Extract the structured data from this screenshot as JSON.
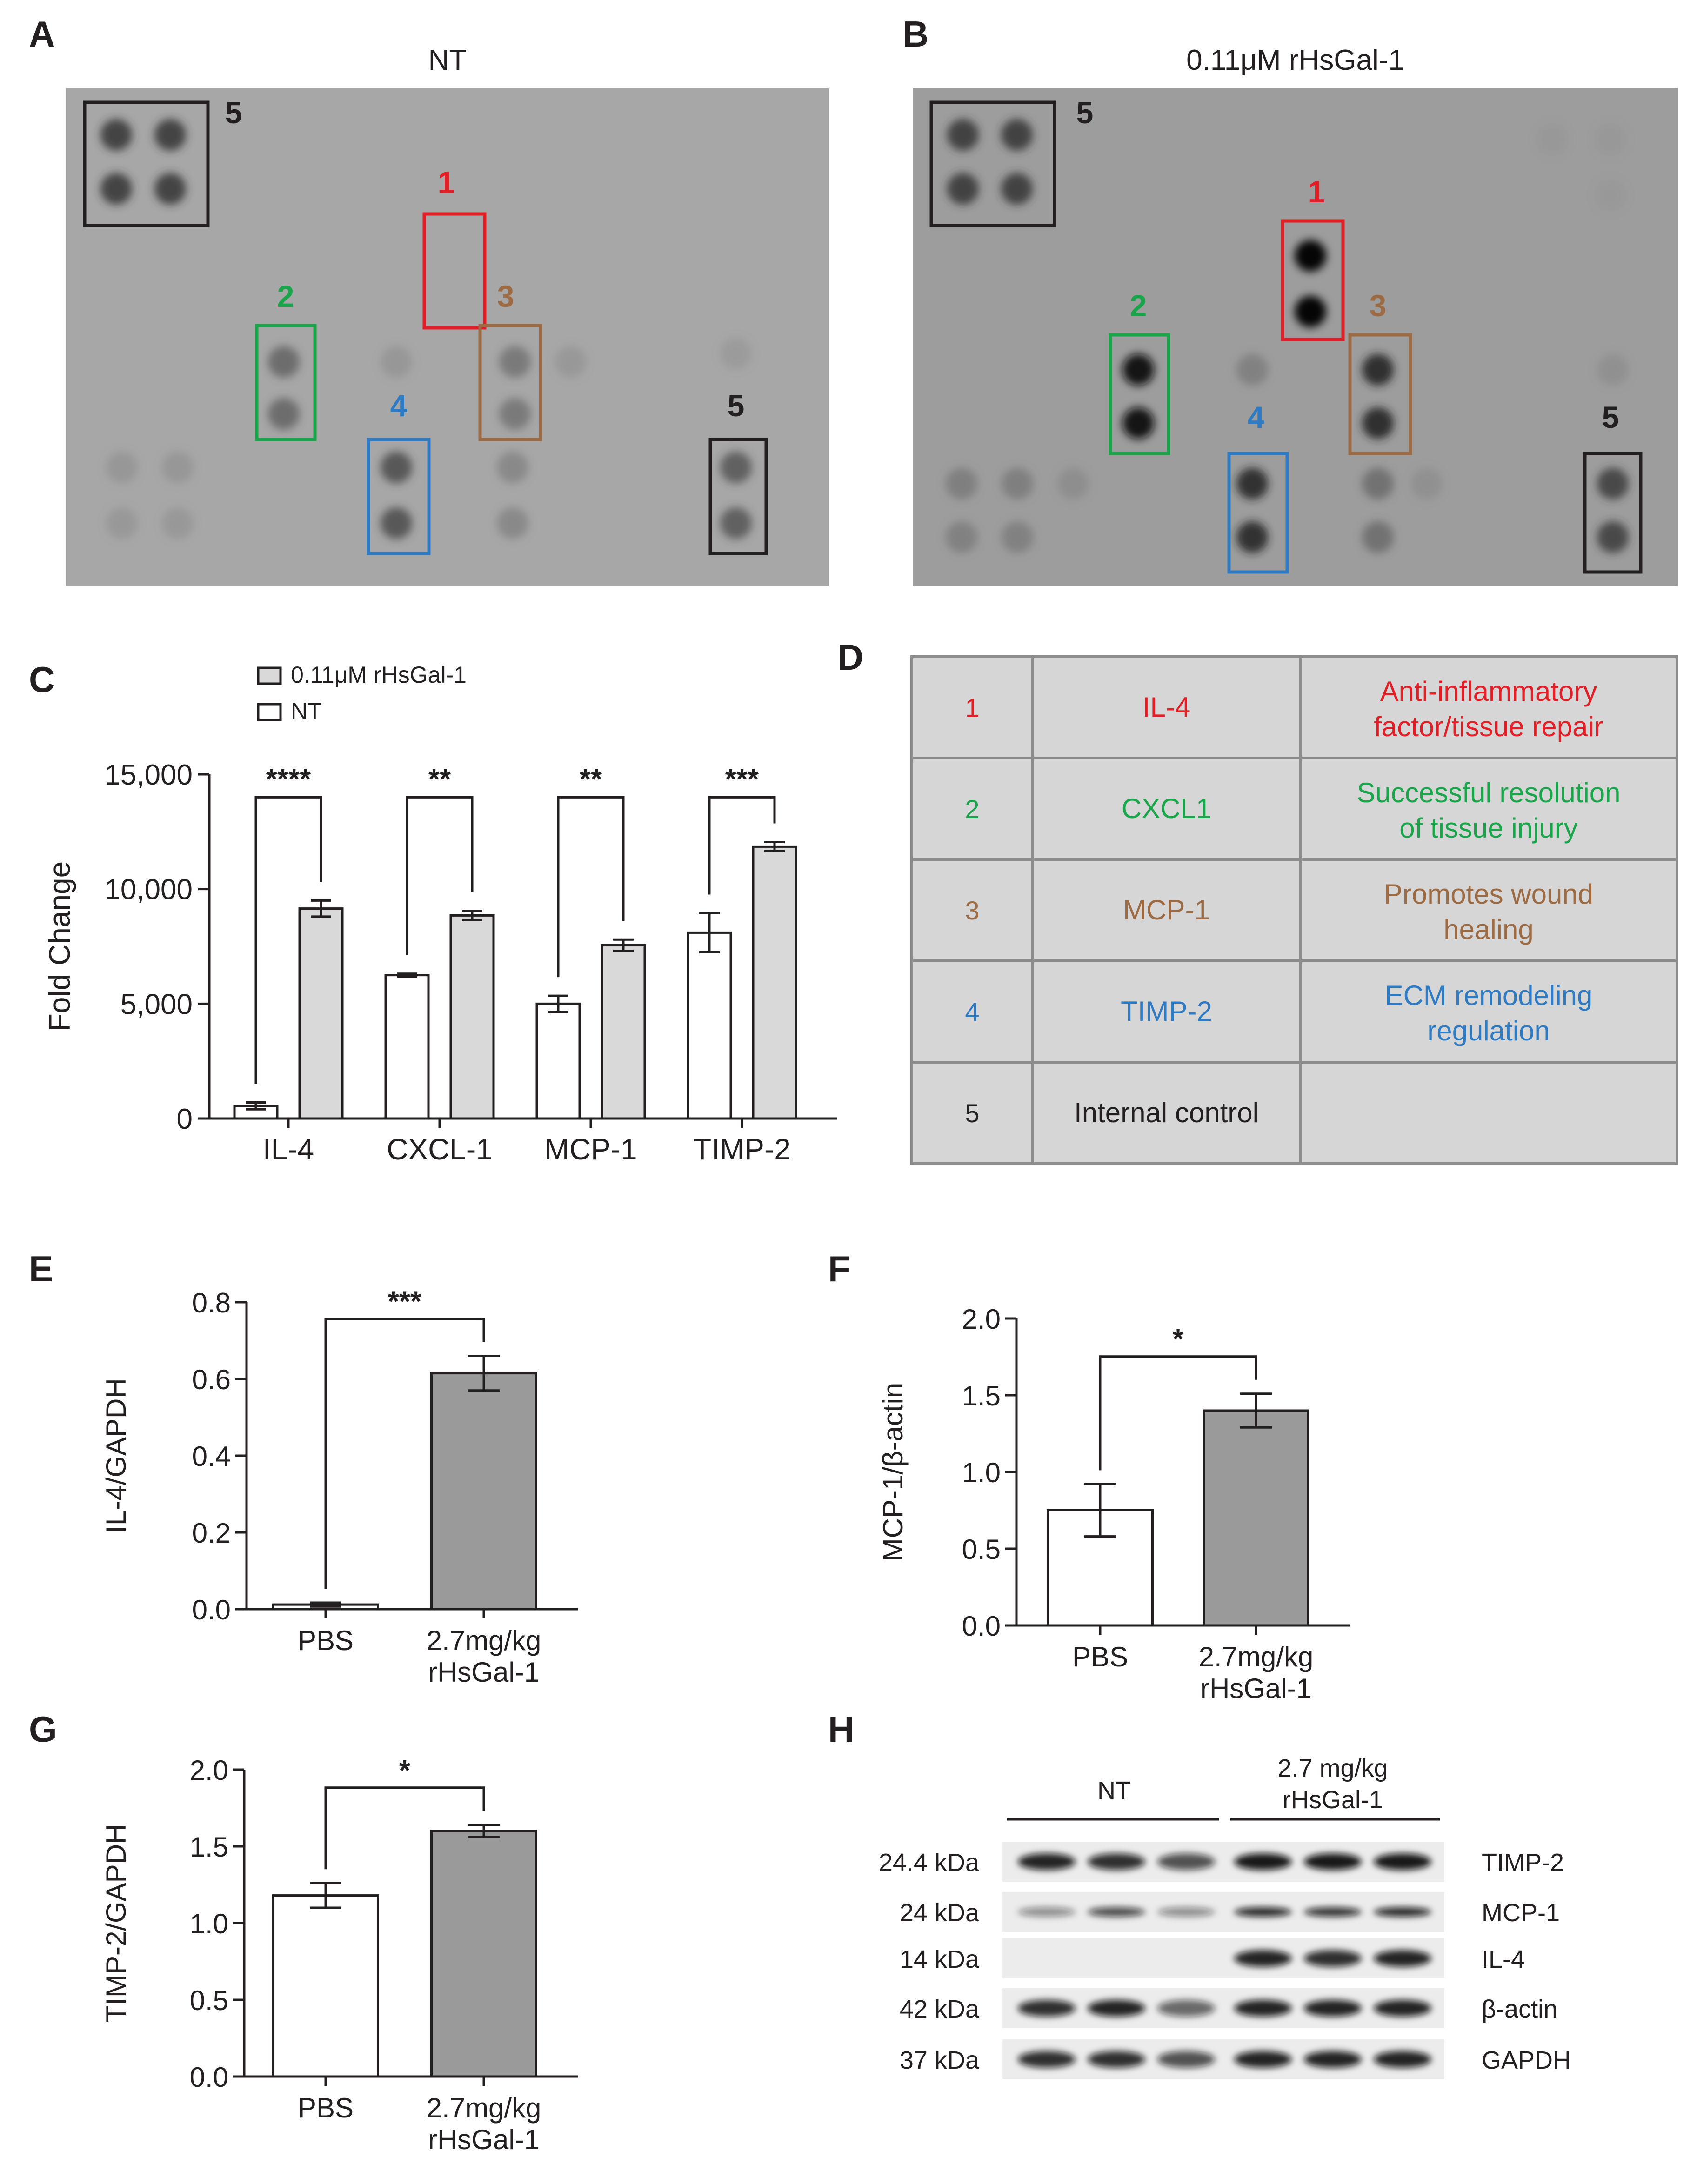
{
  "colors": {
    "red": "#e11f26",
    "green": "#1aa54b",
    "brown": "#9c6b43",
    "blue": "#2f7bc3",
    "black": "#231f20",
    "gray_bar": "#d9d9d9",
    "dark_bar": "#9a9a9a",
    "membrane_nt": "#a7a7a7",
    "membrane_trt": "#9d9d9d",
    "table_bg": "#d6d6d6"
  },
  "panels": {
    "A": {
      "letter": "A",
      "title": "NT",
      "boxes": [
        {
          "label": "5",
          "color": "black"
        },
        {
          "label": "1",
          "color": "red"
        },
        {
          "label": "2",
          "color": "green"
        },
        {
          "label": "3",
          "color": "brown"
        },
        {
          "label": "4",
          "color": "blue"
        },
        {
          "label": "5",
          "color": "black"
        }
      ]
    },
    "B": {
      "letter": "B",
      "title": "0.11μM rHsGal-1",
      "boxes": [
        {
          "label": "5",
          "color": "black"
        },
        {
          "label": "1",
          "color": "red"
        },
        {
          "label": "2",
          "color": "green"
        },
        {
          "label": "3",
          "color": "brown"
        },
        {
          "label": "4",
          "color": "blue"
        },
        {
          "label": "5",
          "color": "black"
        }
      ]
    },
    "C": {
      "letter": "C"
    },
    "D": {
      "letter": "D",
      "rows": [
        {
          "num": "1",
          "name": "IL-4",
          "role_line1": "Anti-inflammatory",
          "role_line2": "factor/tissue repair",
          "color": "#e11f26"
        },
        {
          "num": "2",
          "name": "CXCL1",
          "role_line1": "Successful resolution",
          "role_line2": "of tissue injury",
          "color": "#1aa54b"
        },
        {
          "num": "3",
          "name": "MCP-1",
          "role_line1": "Promotes wound",
          "role_line2": "healing",
          "color": "#9c6b43"
        },
        {
          "num": "4",
          "name": "TIMP-2",
          "role_line1": "ECM remodeling",
          "role_line2": "regulation",
          "color": "#2f7bc3"
        },
        {
          "num": "5",
          "name": "Internal control",
          "role_line1": "",
          "role_line2": "",
          "color": "#231f20"
        }
      ]
    },
    "E": {
      "letter": "E"
    },
    "F": {
      "letter": "F"
    },
    "G": {
      "letter": "G"
    },
    "H": {
      "letter": "H",
      "group_nt": "NT",
      "group_trt_line1": "2.7 mg/kg",
      "group_trt_line2": "rHsGal-1",
      "bands": [
        {
          "kda": "24.4 kDa",
          "protein": "TIMP-2"
        },
        {
          "kda": "24 kDa",
          "protein": "MCP-1"
        },
        {
          "kda": "14 kDa",
          "protein": "IL-4"
        },
        {
          "kda": "42 kDa",
          "protein": "β-actin"
        },
        {
          "kda": "37 kDa",
          "protein": "GAPDH"
        }
      ]
    }
  },
  "chart_data": [
    {
      "panel": "C",
      "type": "bar",
      "categories": [
        "IL-4",
        "CXCL-1",
        "MCP-1",
        "TIMP-2"
      ],
      "series": [
        {
          "name": "NT",
          "values": [
            550,
            6250,
            5000,
            8100
          ],
          "errors": [
            150,
            60,
            350,
            850
          ],
          "fill": "#ffffff"
        },
        {
          "name": "0.11μM rHsGal-1",
          "values": [
            9150,
            8850,
            7550,
            11850
          ],
          "errors": [
            350,
            200,
            250,
            200
          ],
          "fill": "#d9d9d9"
        }
      ],
      "significance": [
        "****",
        "**",
        "**",
        "***"
      ],
      "ylabel": "Fold Change",
      "ylim": [
        0,
        15000
      ],
      "yticks": [
        0,
        5000,
        10000,
        15000
      ],
      "ytick_labels": [
        "0",
        "5,000",
        "10,000",
        "15,000"
      ],
      "legend": [
        "0.11μM rHsGal-1",
        "NT"
      ]
    },
    {
      "panel": "E",
      "type": "bar",
      "categories": [
        "PBS",
        "2.7mg/kg rHsGal-1"
      ],
      "category_lines": [
        [
          "PBS"
        ],
        [
          "2.7mg/kg",
          "rHsGal-1"
        ]
      ],
      "values": [
        0.012,
        0.615
      ],
      "errors": [
        0.005,
        0.045
      ],
      "significance": "***",
      "ylabel": "IL-4/GAPDH",
      "ylim": [
        0,
        0.8
      ],
      "yticks": [
        0,
        0.2,
        0.4,
        0.6,
        0.8
      ],
      "ytick_labels": [
        "0.0",
        "0.2",
        "0.4",
        "0.6",
        "0.8"
      ]
    },
    {
      "panel": "F",
      "type": "bar",
      "categories": [
        "PBS",
        "2.7mg/kg rHsGal-1"
      ],
      "category_lines": [
        [
          "PBS"
        ],
        [
          "2.7mg/kg",
          "rHsGal-1"
        ]
      ],
      "values": [
        0.75,
        1.4
      ],
      "errors": [
        0.17,
        0.11
      ],
      "significance": "*",
      "ylabel": "MCP-1/β-actin",
      "ylim": [
        0,
        2.0
      ],
      "yticks": [
        0,
        0.5,
        1.0,
        1.5,
        2.0
      ],
      "ytick_labels": [
        "0.0",
        "0.5",
        "1.0",
        "1.5",
        "2.0"
      ]
    },
    {
      "panel": "G",
      "type": "bar",
      "categories": [
        "PBS",
        "2.7mg/kg rHsGal-1"
      ],
      "category_lines": [
        [
          "PBS"
        ],
        [
          "2.7mg/kg",
          "rHsGal-1"
        ]
      ],
      "values": [
        1.18,
        1.6
      ],
      "errors": [
        0.08,
        0.04
      ],
      "significance": "*",
      "ylabel": "TIMP-2/GAPDH",
      "ylim": [
        0,
        2.0
      ],
      "yticks": [
        0,
        0.5,
        1.0,
        1.5,
        2.0
      ],
      "ytick_labels": [
        "0.0",
        "0.5",
        "1.0",
        "1.5",
        "2.0"
      ]
    }
  ]
}
